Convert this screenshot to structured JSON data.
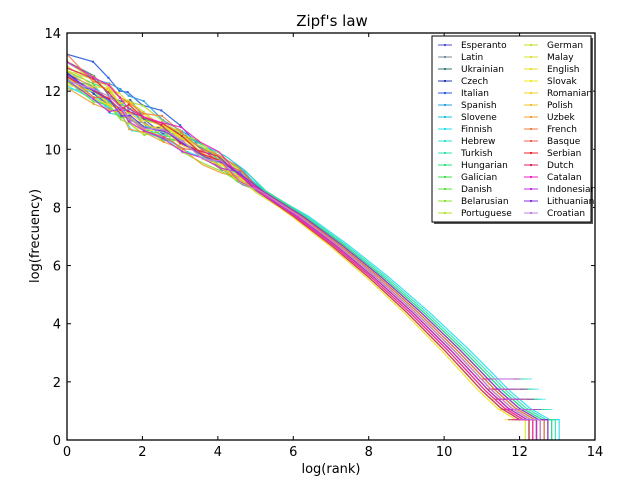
{
  "chart_data": {
    "type": "line",
    "title": "Zipf's law",
    "xlabel": "log(rank)",
    "ylabel": "log(frecuency)",
    "xlim": [
      0,
      14
    ],
    "ylim": [
      0,
      14
    ],
    "xticks": [
      "0",
      "2",
      "4",
      "6",
      "8",
      "10",
      "12",
      "14"
    ],
    "yticks": [
      "0",
      "2",
      "4",
      "6",
      "8",
      "10",
      "12",
      "14"
    ],
    "grid": false,
    "legend_position": "top-right",
    "base_curve": {
      "x": [
        0,
        0.69,
        1.1,
        1.39,
        1.61,
        2,
        2.5,
        3,
        3.5,
        4,
        4.5,
        5,
        6,
        7,
        8,
        9,
        10,
        10.5,
        11,
        11.5,
        12
      ],
      "y": [
        12.7,
        12.2,
        11.9,
        11.6,
        11.4,
        11.1,
        10.8,
        10.4,
        10.0,
        9.6,
        9.1,
        8.6,
        7.7,
        6.7,
        5.6,
        4.4,
        3.1,
        2.4,
        1.7,
        1.1,
        0.7
      ]
    },
    "series": [
      {
        "name": "Esperanto",
        "color": "#5050c8",
        "start": 12.6,
        "tail": 12.2
      },
      {
        "name": "Latin",
        "color": "#7a8a9a",
        "start": 12.3,
        "tail": 12.4
      },
      {
        "name": "Ukrainian",
        "color": "#3a7a7a",
        "start": 12.8,
        "tail": 12.5
      },
      {
        "name": "Czech",
        "color": "#2a3ab0",
        "start": 12.4,
        "tail": 12.3
      },
      {
        "name": "Italian",
        "color": "#2a5ae0",
        "start": 13.4,
        "tail": 12.0
      },
      {
        "name": "Spanish",
        "color": "#2aa0e0",
        "start": 13.2,
        "tail": 12.2
      },
      {
        "name": "Slovene",
        "color": "#20c0e0",
        "start": 12.5,
        "tail": 12.6
      },
      {
        "name": "Finnish",
        "color": "#20e0f0",
        "start": 12.0,
        "tail": 12.8
      },
      {
        "name": "Hebrew",
        "color": "#30e0d0",
        "start": 12.2,
        "tail": 12.4
      },
      {
        "name": "Turkish",
        "color": "#30e0b0",
        "start": 12.4,
        "tail": 12.7
      },
      {
        "name": "Hungarian",
        "color": "#30e080",
        "start": 12.5,
        "tail": 12.6
      },
      {
        "name": "Galician",
        "color": "#40e050",
        "start": 12.9,
        "tail": 12.0
      },
      {
        "name": "Danish",
        "color": "#60e040",
        "start": 12.3,
        "tail": 12.1
      },
      {
        "name": "Belarusian",
        "color": "#90e030",
        "start": 12.1,
        "tail": 12.3
      },
      {
        "name": "Portuguese",
        "color": "#b0e030",
        "start": 13.0,
        "tail": 12.1
      },
      {
        "name": "German",
        "color": "#c0e030",
        "start": 12.7,
        "tail": 12.2
      },
      {
        "name": "Malay",
        "color": "#d8e030",
        "start": 12.2,
        "tail": 12.0
      },
      {
        "name": "English",
        "color": "#e8e020",
        "start": 12.9,
        "tail": 11.9
      },
      {
        "name": "Slovak",
        "color": "#f0e820",
        "start": 12.4,
        "tail": 12.4
      },
      {
        "name": "Romanian",
        "color": "#f0d020",
        "start": 12.8,
        "tail": 12.1
      },
      {
        "name": "Polish",
        "color": "#f0c030",
        "start": 12.5,
        "tail": 12.5
      },
      {
        "name": "Uzbek",
        "color": "#f0a030",
        "start": 12.0,
        "tail": 12.3
      },
      {
        "name": "French",
        "color": "#f08040",
        "start": 13.1,
        "tail": 12.1
      },
      {
        "name": "Basque",
        "color": "#f06050",
        "start": 12.3,
        "tail": 12.4
      },
      {
        "name": "Serbian",
        "color": "#f02030",
        "start": 12.6,
        "tail": 12.2
      },
      {
        "name": "Dutch",
        "color": "#e02060",
        "start": 12.7,
        "tail": 12.0
      },
      {
        "name": "Catalan",
        "color": "#f020c0",
        "start": 13.0,
        "tail": 12.1
      },
      {
        "name": "Indonesian",
        "color": "#c030e0",
        "start": 12.2,
        "tail": 12.2
      },
      {
        "name": "Lithuanian",
        "color": "#8030e0",
        "start": 12.4,
        "tail": 12.5
      },
      {
        "name": "Croatian",
        "color": "#c080e0",
        "start": 12.5,
        "tail": 12.3
      }
    ]
  }
}
